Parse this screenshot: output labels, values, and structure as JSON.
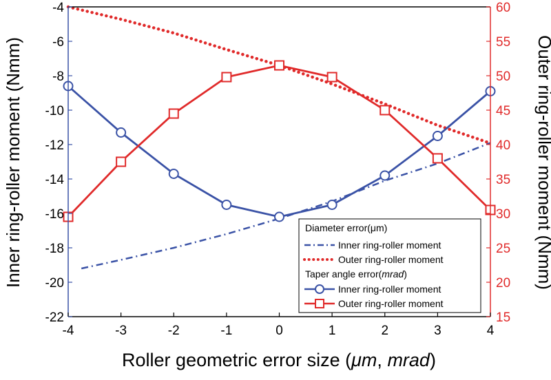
{
  "chart_data": {
    "type": "line",
    "xlabel_prefix": "Roller geometric error size (",
    "xlabel_unit1": "μm",
    "xlabel_sep": ", ",
    "xlabel_unit2": "mrad",
    "xlabel_suffix": ")",
    "ylabel_left": "Inner ring-roller moment (Nmm)",
    "ylabel_right": "Outer ring-roller moment (Nmm)",
    "xlim": [
      -4,
      4
    ],
    "ylim_left": [
      -22,
      -4
    ],
    "ylim_right": [
      15,
      60
    ],
    "x_ticks": [
      -4,
      -3,
      -2,
      -1,
      0,
      1,
      2,
      3,
      4
    ],
    "y_ticks_left": [
      -22,
      -20,
      -18,
      -16,
      -14,
      -12,
      -10,
      -8,
      -6,
      -4
    ],
    "y_ticks_right": [
      15,
      20,
      25,
      30,
      35,
      40,
      45,
      50,
      55,
      60
    ],
    "colors": {
      "inner": "#3a52a6",
      "outer": "#e02a2a"
    },
    "series": [
      {
        "name": "Diameter inner ring-roller moment",
        "axis": "left",
        "style": "dashdot",
        "marker": "none",
        "x": [
          -3.75,
          -3,
          -2,
          -1,
          0,
          1,
          2,
          3,
          4
        ],
        "values": [
          -19.2,
          -18.7,
          -18.0,
          -17.2,
          -16.3,
          -15.3,
          -14.1,
          -13.1,
          -11.9
        ]
      },
      {
        "name": "Diameter outer ring-roller moment",
        "axis": "right",
        "style": "dotted",
        "marker": "none",
        "x": [
          -4,
          -3,
          -2,
          -1,
          0,
          1,
          2,
          3,
          4
        ],
        "values": [
          60,
          58.2,
          56.2,
          53.8,
          51.5,
          48.8,
          45.9,
          42.8,
          40.2
        ]
      },
      {
        "name": "Taper inner ring-roller moment",
        "axis": "left",
        "style": "solid",
        "marker": "circle",
        "x": [
          -4,
          -3,
          -2,
          -1,
          0,
          1,
          2,
          3,
          4
        ],
        "values": [
          -8.6,
          -11.3,
          -13.7,
          -15.5,
          -16.2,
          -15.5,
          -13.8,
          -11.5,
          -8.9
        ]
      },
      {
        "name": "Taper outer ring-roller moment",
        "axis": "right",
        "style": "solid",
        "marker": "square",
        "x": [
          -4,
          -3,
          -2,
          -1,
          0,
          1,
          2,
          3,
          4
        ],
        "values": [
          29.5,
          37.5,
          44.5,
          49.8,
          51.5,
          49.8,
          45.0,
          38.0,
          30.5
        ]
      }
    ],
    "legend": {
      "position": "bottom-right",
      "group1_title": "Diameter error(μm)",
      "group1_items": [
        "Inner ring-roller moment",
        "Outer ring-roller moment"
      ],
      "group2_title_prefix": "Taper angle error(",
      "group2_title_unit": "mrad",
      "group2_title_suffix": ")",
      "group2_items": [
        "Inner ring-roller moment",
        "Outer ring-roller moment"
      ]
    }
  }
}
